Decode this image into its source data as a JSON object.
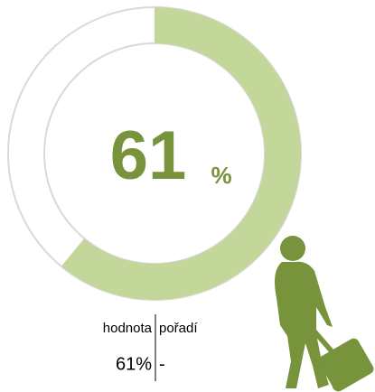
{
  "chart_data": {
    "type": "gauge",
    "value": 61,
    "unit": "%",
    "max": 100,
    "color": "#c4d79b",
    "track_color": "#ffffff",
    "outline_color": "#d9d9d9",
    "text_color": "#77933c",
    "table": {
      "headers": [
        "hodnota",
        "pořadí"
      ],
      "values": [
        "61%",
        "-"
      ]
    }
  }
}
